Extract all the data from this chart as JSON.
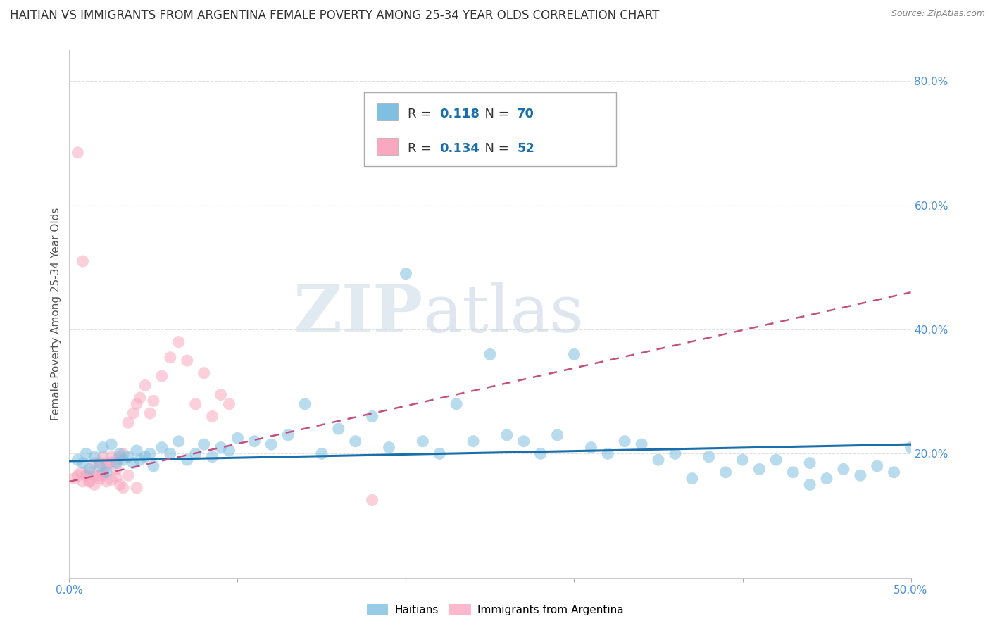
{
  "title": "HAITIAN VS IMMIGRANTS FROM ARGENTINA FEMALE POVERTY AMONG 25-34 YEAR OLDS CORRELATION CHART",
  "source": "Source: ZipAtlas.com",
  "ylabel": "Female Poverty Among 25-34 Year Olds",
  "xlim": [
    0.0,
    0.5
  ],
  "ylim": [
    0.0,
    0.85
  ],
  "xtick_positions": [
    0.0,
    0.1,
    0.2,
    0.3,
    0.4,
    0.5
  ],
  "xticklabels_sparse": {
    "0": "0.0%",
    "5": "50.0%"
  },
  "yticks_right": [
    0.2,
    0.4,
    0.6,
    0.8
  ],
  "ytick_right_labels": [
    "20.0%",
    "40.0%",
    "60.0%",
    "80.0%"
  ],
  "haitian_color": "#7fbfdf",
  "argentina_color": "#f9a8c0",
  "haitian_R": "0.118",
  "haitian_N": "70",
  "argentina_R": "0.134",
  "argentina_N": "52",
  "r_color": "#1a6faa",
  "n_color": "#1a6faa",
  "legend_label_1": "Haitians",
  "legend_label_2": "Immigrants from Argentina",
  "watermark_zip": "ZIP",
  "watermark_atlas": "atlas",
  "haitian_scatter_x": [
    0.005,
    0.008,
    0.01,
    0.012,
    0.015,
    0.018,
    0.02,
    0.022,
    0.025,
    0.028,
    0.03,
    0.032,
    0.035,
    0.038,
    0.04,
    0.042,
    0.045,
    0.048,
    0.05,
    0.055,
    0.06,
    0.065,
    0.07,
    0.075,
    0.08,
    0.085,
    0.09,
    0.095,
    0.1,
    0.11,
    0.12,
    0.13,
    0.14,
    0.15,
    0.16,
    0.17,
    0.18,
    0.19,
    0.2,
    0.21,
    0.22,
    0.23,
    0.24,
    0.25,
    0.26,
    0.27,
    0.28,
    0.29,
    0.3,
    0.31,
    0.32,
    0.33,
    0.34,
    0.35,
    0.36,
    0.37,
    0.38,
    0.39,
    0.4,
    0.41,
    0.42,
    0.43,
    0.44,
    0.45,
    0.46,
    0.47,
    0.48,
    0.49,
    0.5,
    0.44
  ],
  "haitian_scatter_y": [
    0.19,
    0.185,
    0.2,
    0.175,
    0.195,
    0.18,
    0.21,
    0.17,
    0.215,
    0.185,
    0.2,
    0.19,
    0.195,
    0.185,
    0.205,
    0.19,
    0.195,
    0.2,
    0.18,
    0.21,
    0.2,
    0.22,
    0.19,
    0.2,
    0.215,
    0.195,
    0.21,
    0.205,
    0.225,
    0.22,
    0.215,
    0.23,
    0.28,
    0.2,
    0.24,
    0.22,
    0.26,
    0.21,
    0.49,
    0.22,
    0.2,
    0.28,
    0.22,
    0.36,
    0.23,
    0.22,
    0.2,
    0.23,
    0.36,
    0.21,
    0.2,
    0.22,
    0.215,
    0.19,
    0.2,
    0.16,
    0.195,
    0.17,
    0.19,
    0.175,
    0.19,
    0.17,
    0.185,
    0.16,
    0.175,
    0.165,
    0.18,
    0.17,
    0.21,
    0.15
  ],
  "argentina_scatter_x": [
    0.003,
    0.005,
    0.007,
    0.008,
    0.01,
    0.012,
    0.015,
    0.018,
    0.02,
    0.022,
    0.025,
    0.028,
    0.03,
    0.032,
    0.035,
    0.038,
    0.04,
    0.042,
    0.045,
    0.048,
    0.05,
    0.055,
    0.06,
    0.065,
    0.07,
    0.075,
    0.08,
    0.085,
    0.09,
    0.095,
    0.005,
    0.008,
    0.01,
    0.012,
    0.015,
    0.018,
    0.02,
    0.022,
    0.025,
    0.028,
    0.012,
    0.015,
    0.018,
    0.02,
    0.022,
    0.025,
    0.028,
    0.03,
    0.032,
    0.035,
    0.04,
    0.18
  ],
  "argentina_scatter_y": [
    0.16,
    0.165,
    0.17,
    0.155,
    0.165,
    0.155,
    0.165,
    0.185,
    0.17,
    0.185,
    0.195,
    0.19,
    0.195,
    0.2,
    0.25,
    0.265,
    0.28,
    0.29,
    0.31,
    0.265,
    0.285,
    0.325,
    0.355,
    0.38,
    0.35,
    0.28,
    0.33,
    0.26,
    0.295,
    0.28,
    0.685,
    0.51,
    0.165,
    0.17,
    0.185,
    0.165,
    0.195,
    0.18,
    0.185,
    0.175,
    0.155,
    0.15,
    0.16,
    0.165,
    0.155,
    0.158,
    0.162,
    0.15,
    0.145,
    0.165,
    0.145,
    0.125
  ],
  "haitian_trend_x": [
    0.0,
    0.5
  ],
  "haitian_trend_y": [
    0.188,
    0.215
  ],
  "argentina_trend_x": [
    0.0,
    0.5
  ],
  "argentina_trend_y": [
    0.155,
    0.46
  ],
  "grid_color": "#dddddd",
  "background_color": "#ffffff",
  "title_fontsize": 12,
  "axis_label_fontsize": 11,
  "tick_fontsize": 11,
  "legend_fontsize": 12
}
